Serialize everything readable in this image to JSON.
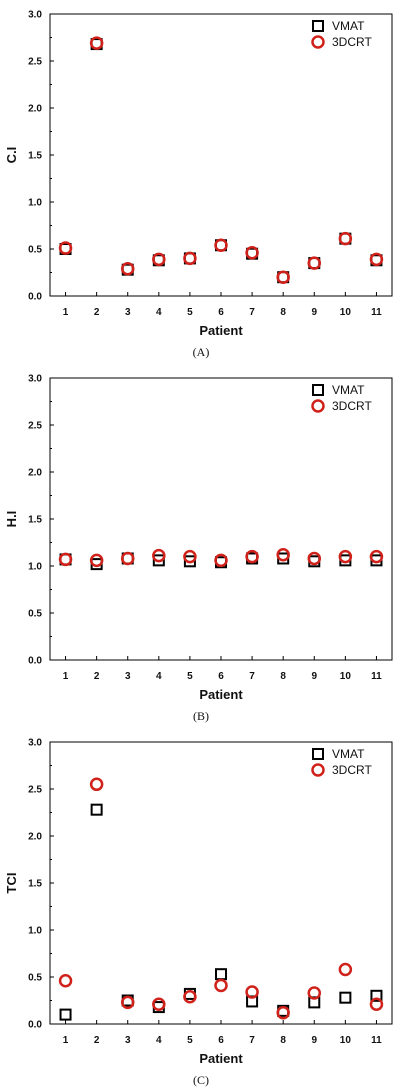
{
  "chart_data": [
    {
      "type": "scatter",
      "panel_label": "(A)",
      "ylabel": "C.I",
      "xlabel": "Patient",
      "ylim": [
        0.0,
        3.0
      ],
      "xlim": [
        0.5,
        11.5
      ],
      "x_ticks": [
        "1",
        "2",
        "3",
        "4",
        "5",
        "6",
        "7",
        "8",
        "9",
        "10",
        "11"
      ],
      "y_ticks": [
        "0.0",
        "0.5",
        "1.0",
        "1.5",
        "2.0",
        "2.5",
        "3.0"
      ],
      "legend_position": "top-right",
      "series": [
        {
          "name": "VMAT",
          "marker": "square",
          "color": "#000000",
          "x": [
            1,
            2,
            3,
            4,
            5,
            6,
            7,
            8,
            9,
            10,
            11
          ],
          "values": [
            0.5,
            2.68,
            0.28,
            0.38,
            0.4,
            0.54,
            0.45,
            0.2,
            0.35,
            0.61,
            0.38
          ]
        },
        {
          "name": "3DCRT",
          "marker": "circle",
          "color": "#d0211a",
          "x": [
            1,
            2,
            3,
            4,
            5,
            6,
            7,
            8,
            9,
            10,
            11
          ],
          "values": [
            0.51,
            2.69,
            0.29,
            0.39,
            0.4,
            0.54,
            0.46,
            0.2,
            0.35,
            0.61,
            0.39
          ]
        }
      ]
    },
    {
      "type": "scatter",
      "panel_label": "(B)",
      "ylabel": "H.I",
      "xlabel": "Patient",
      "ylim": [
        0.0,
        3.0
      ],
      "xlim": [
        0.5,
        11.5
      ],
      "x_ticks": [
        "1",
        "2",
        "3",
        "4",
        "5",
        "6",
        "7",
        "8",
        "9",
        "10",
        "11"
      ],
      "y_ticks": [
        "0.0",
        "0.5",
        "1.0",
        "1.5",
        "2.0",
        "2.5",
        "3.0"
      ],
      "legend_position": "top-right",
      "series": [
        {
          "name": "VMAT",
          "marker": "square",
          "color": "#000000",
          "x": [
            1,
            2,
            3,
            4,
            5,
            6,
            7,
            8,
            9,
            10,
            11
          ],
          "values": [
            1.07,
            1.02,
            1.08,
            1.06,
            1.05,
            1.04,
            1.08,
            1.08,
            1.05,
            1.06,
            1.06
          ]
        },
        {
          "name": "3DCRT",
          "marker": "circle",
          "color": "#d0211a",
          "x": [
            1,
            2,
            3,
            4,
            5,
            6,
            7,
            8,
            9,
            10,
            11
          ],
          "values": [
            1.07,
            1.06,
            1.08,
            1.11,
            1.1,
            1.06,
            1.1,
            1.12,
            1.08,
            1.1,
            1.1
          ]
        }
      ]
    },
    {
      "type": "scatter",
      "panel_label": "(C)",
      "ylabel": "TCI",
      "xlabel": "Patient",
      "ylim": [
        0.0,
        3.0
      ],
      "xlim": [
        0.5,
        11.5
      ],
      "x_ticks": [
        "1",
        "2",
        "3",
        "4",
        "5",
        "6",
        "7",
        "8",
        "9",
        "10",
        "11"
      ],
      "y_ticks": [
        "0.0",
        "0.5",
        "1.0",
        "1.5",
        "2.0",
        "2.5",
        "3.0"
      ],
      "legend_position": "top-right",
      "series": [
        {
          "name": "VMAT",
          "marker": "square",
          "color": "#000000",
          "x": [
            1,
            2,
            3,
            4,
            5,
            6,
            7,
            8,
            9,
            10,
            11
          ],
          "values": [
            0.1,
            2.28,
            0.25,
            0.18,
            0.32,
            0.53,
            0.24,
            0.14,
            0.23,
            0.28,
            0.3
          ]
        },
        {
          "name": "3DCRT",
          "marker": "circle",
          "color": "#d0211a",
          "x": [
            1,
            2,
            3,
            4,
            5,
            6,
            7,
            8,
            9,
            10,
            11
          ],
          "values": [
            0.46,
            2.55,
            0.23,
            0.21,
            0.29,
            0.41,
            0.34,
            0.12,
            0.33,
            0.58,
            0.21
          ]
        }
      ]
    }
  ]
}
